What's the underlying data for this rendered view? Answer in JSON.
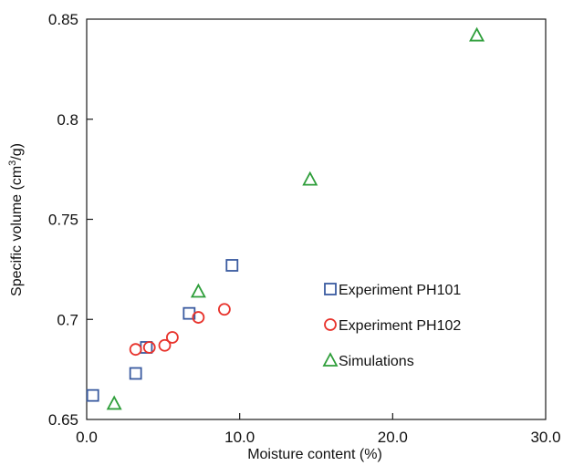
{
  "chart_data": {
    "type": "scatter",
    "xlabel": "Moisture content (%)",
    "ylabel_main": "Specific volume (cm",
    "ylabel_sup": "3",
    "ylabel_end": "/g)",
    "xlim": [
      0,
      30
    ],
    "ylim": [
      0.65,
      0.85
    ],
    "x_ticks": [
      0,
      10,
      20,
      30
    ],
    "x_tick_labels": [
      "0.0",
      "10.0",
      "20.0",
      "30.0"
    ],
    "y_ticks": [
      0.65,
      0.7,
      0.75,
      0.8,
      0.85
    ],
    "y_tick_labels": [
      "0.65",
      "0.7",
      "0.75",
      "0.8",
      "0.85"
    ],
    "grid": false,
    "legend_position": "right-middle",
    "series": [
      {
        "name": "Experiment PH101",
        "marker": "square",
        "color": "#3a5ba0",
        "points": [
          {
            "x": 0.4,
            "y": 0.662
          },
          {
            "x": 3.2,
            "y": 0.673
          },
          {
            "x": 3.9,
            "y": 0.686
          },
          {
            "x": 6.7,
            "y": 0.703
          },
          {
            "x": 9.5,
            "y": 0.727
          }
        ]
      },
      {
        "name": "Experiment PH102",
        "marker": "circle",
        "color": "#e8322b",
        "points": [
          {
            "x": 3.2,
            "y": 0.685
          },
          {
            "x": 4.1,
            "y": 0.686
          },
          {
            "x": 5.1,
            "y": 0.687
          },
          {
            "x": 5.6,
            "y": 0.691
          },
          {
            "x": 7.3,
            "y": 0.701
          },
          {
            "x": 9.0,
            "y": 0.705
          }
        ]
      },
      {
        "name": "Simulations",
        "marker": "triangle",
        "color": "#2e9e3a",
        "points": [
          {
            "x": 1.8,
            "y": 0.658
          },
          {
            "x": 7.3,
            "y": 0.714
          },
          {
            "x": 14.6,
            "y": 0.77
          },
          {
            "x": 25.5,
            "y": 0.842
          }
        ]
      }
    ]
  }
}
